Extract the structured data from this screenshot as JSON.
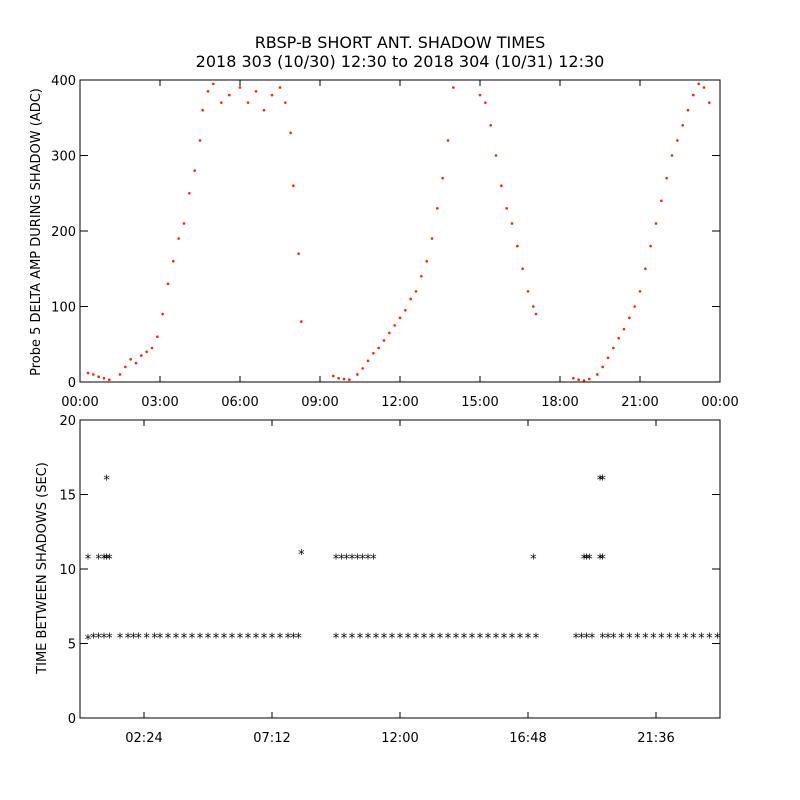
{
  "title": "RBSP-B SHORT ANT. SHADOW TIMES",
  "subtitle": "2018 303 (10/30) 12:30 to 2018 304 (10/31) 12:30",
  "colors": {
    "top_points": "#ff2000",
    "bottom_points": "#000000",
    "axes": "#000000",
    "background": "#ffffff"
  },
  "chart_data": [
    {
      "type": "scatter",
      "ylabel": "Probe 5 DELTA AMP DURING SHADOW (ADC)",
      "xlim": [
        0,
        24
      ],
      "ylim": [
        0,
        400
      ],
      "x_unit": "hours",
      "grid": false,
      "x_ticks": [
        0,
        3,
        6,
        9,
        12,
        15,
        18,
        21,
        24
      ],
      "x_tick_labels": [
        "00:00",
        "03:00",
        "06:00",
        "09:00",
        "12:00",
        "15:00",
        "18:00",
        "21:00",
        "00:00"
      ],
      "y_ticks": [
        0,
        100,
        200,
        300,
        400
      ],
      "y_tick_labels": [
        "0",
        "100",
        "200",
        "300",
        "400"
      ],
      "series": [
        {
          "marker": "dot",
          "color": "#ff2000",
          "x": [
            0.3,
            0.5,
            0.7,
            0.9,
            1.1,
            1.5,
            1.7,
            1.9,
            2.1,
            2.3,
            2.5,
            2.7,
            2.9,
            3.1,
            3.3,
            3.5,
            3.7,
            3.9,
            4.1,
            4.3,
            4.5,
            4.6,
            4.8,
            5.0,
            5.3,
            5.6,
            6.0,
            6.3,
            6.6,
            6.9,
            7.2,
            7.5,
            7.7,
            7.9,
            8.0,
            8.2,
            8.3,
            9.5,
            9.7,
            9.9,
            10.1,
            10.4,
            10.6,
            10.8,
            11.0,
            11.2,
            11.4,
            11.6,
            11.8,
            12.0,
            12.2,
            12.4,
            12.6,
            12.8,
            13.0,
            13.2,
            13.4,
            13.6,
            13.8,
            14.0,
            15.0,
            15.2,
            15.4,
            15.6,
            15.8,
            16.0,
            16.2,
            16.4,
            16.6,
            16.8,
            17.0,
            17.1,
            18.5,
            18.7,
            18.9,
            19.1,
            19.4,
            19.6,
            19.8,
            20.0,
            20.2,
            20.4,
            20.6,
            20.8,
            21.0,
            21.2,
            21.4,
            21.6,
            21.8,
            22.0,
            22.2,
            22.4,
            22.6,
            22.8,
            23.0,
            23.2,
            23.4,
            23.6
          ],
          "y": [
            12,
            10,
            7,
            5,
            3,
            10,
            20,
            30,
            25,
            35,
            40,
            45,
            60,
            90,
            130,
            160,
            190,
            210,
            250,
            280,
            320,
            360,
            385,
            395,
            370,
            380,
            390,
            370,
            385,
            360,
            380,
            390,
            370,
            330,
            260,
            170,
            80,
            8,
            5,
            4,
            3,
            10,
            18,
            28,
            38,
            45,
            55,
            65,
            75,
            85,
            95,
            110,
            120,
            140,
            160,
            190,
            230,
            270,
            320,
            390,
            380,
            370,
            340,
            300,
            260,
            230,
            210,
            180,
            150,
            120,
            100,
            90,
            5,
            3,
            2,
            4,
            10,
            20,
            32,
            45,
            58,
            70,
            85,
            100,
            120,
            150,
            180,
            210,
            240,
            270,
            300,
            320,
            340,
            360,
            380,
            395,
            390,
            370
          ]
        }
      ]
    },
    {
      "type": "scatter",
      "ylabel": "TIME BETWEEN SHADOWS (SEC)",
      "xlim": [
        0,
        24
      ],
      "ylim": [
        0,
        20
      ],
      "x_unit": "hours",
      "grid": false,
      "x_ticks": [
        2.4,
        7.2,
        12.0,
        16.8,
        21.6
      ],
      "x_tick_labels": [
        "02:24",
        "07:12",
        "12:00",
        "16:48",
        "21:36"
      ],
      "y_ticks": [
        0,
        5,
        10,
        15,
        20
      ],
      "y_tick_labels": [
        "0",
        "5",
        "10",
        "15",
        "20"
      ],
      "series": [
        {
          "marker": "asterisk",
          "color": "#000000",
          "x": [
            0.3,
            0.5,
            0.7,
            0.9,
            1.1,
            0.3,
            0.7,
            0.9,
            1.0,
            1.1,
            1.0,
            1.5,
            1.8,
            2.0,
            2.2,
            2.5,
            2.8,
            3.0,
            3.3,
            3.6,
            3.9,
            4.2,
            4.5,
            4.8,
            5.1,
            5.4,
            5.7,
            6.0,
            6.3,
            6.6,
            6.9,
            7.2,
            7.5,
            7.8,
            8.0,
            8.2,
            8.3,
            9.6,
            9.9,
            10.2,
            10.5,
            10.8,
            11.1,
            11.4,
            11.7,
            12.0,
            12.3,
            12.6,
            12.9,
            13.2,
            13.5,
            13.8,
            14.1,
            14.4,
            14.7,
            15.0,
            15.3,
            15.6,
            15.9,
            16.2,
            16.5,
            16.8,
            17.1,
            9.6,
            9.8,
            10.0,
            10.2,
            10.4,
            10.6,
            10.8,
            11.0,
            17.0,
            18.6,
            18.8,
            19.0,
            19.2,
            19.6,
            19.8,
            20.0,
            20.3,
            20.6,
            20.9,
            21.2,
            21.5,
            21.8,
            22.1,
            22.4,
            22.7,
            23.0,
            23.3,
            23.6,
            23.9,
            18.9,
            19.0,
            19.1,
            19.5,
            19.6,
            19.5,
            19.6
          ],
          "y": [
            5.3,
            5.4,
            5.4,
            5.4,
            5.4,
            10.7,
            10.7,
            10.7,
            10.7,
            10.7,
            16.0,
            5.4,
            5.4,
            5.4,
            5.4,
            5.4,
            5.4,
            5.4,
            5.4,
            5.4,
            5.4,
            5.4,
            5.4,
            5.4,
            5.4,
            5.4,
            5.4,
            5.4,
            5.4,
            5.4,
            5.4,
            5.4,
            5.4,
            5.4,
            5.4,
            5.4,
            11.0,
            5.4,
            5.4,
            5.4,
            5.4,
            5.4,
            5.4,
            5.4,
            5.4,
            5.4,
            5.4,
            5.4,
            5.4,
            5.4,
            5.4,
            5.4,
            5.4,
            5.4,
            5.4,
            5.4,
            5.4,
            5.4,
            5.4,
            5.4,
            5.4,
            5.4,
            5.4,
            10.7,
            10.7,
            10.7,
            10.7,
            10.7,
            10.7,
            10.7,
            10.7,
            10.7,
            5.4,
            5.4,
            5.4,
            5.4,
            5.4,
            5.4,
            5.4,
            5.4,
            5.4,
            5.4,
            5.4,
            5.4,
            5.4,
            5.4,
            5.4,
            5.4,
            5.4,
            5.4,
            5.4,
            5.4,
            10.7,
            10.7,
            10.7,
            10.7,
            10.7,
            16.0,
            16.0
          ]
        }
      ]
    }
  ]
}
